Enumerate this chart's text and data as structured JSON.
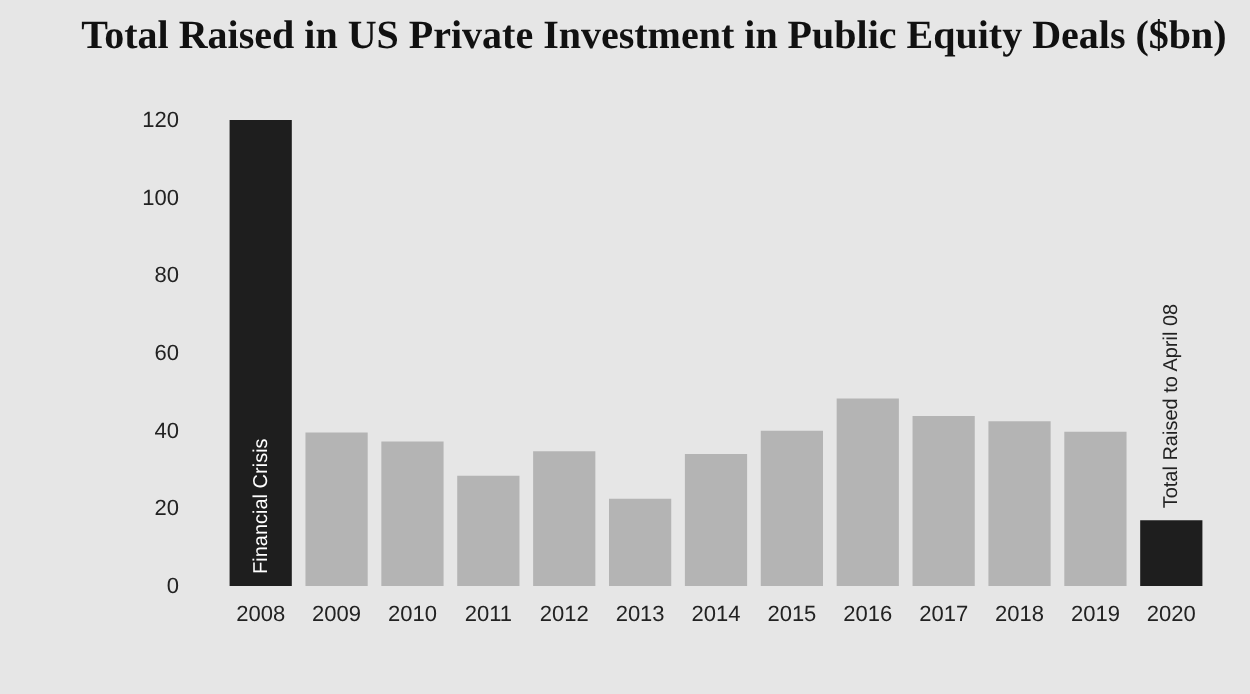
{
  "chart_data": {
    "type": "bar",
    "title": "Total Raised in US Private Investment in Public Equity Deals ($bn)",
    "categories": [
      "2008",
      "2009",
      "2010",
      "2011",
      "2012",
      "2013",
      "2014",
      "2015",
      "2016",
      "2017",
      "2018",
      "2019",
      "2020"
    ],
    "values": [
      120,
      39.5,
      37.2,
      28.4,
      34.7,
      22.5,
      34,
      40,
      48.3,
      43.8,
      42.4,
      39.7,
      16.9
    ],
    "colors": [
      "#1e1e1e",
      "#b4b4b4",
      "#b4b4b4",
      "#b4b4b4",
      "#b4b4b4",
      "#b4b4b4",
      "#b4b4b4",
      "#b4b4b4",
      "#b4b4b4",
      "#b4b4b4",
      "#b4b4b4",
      "#b4b4b4",
      "#1e1e1e"
    ],
    "ylim": [
      0,
      120
    ],
    "yticks": [
      0,
      20,
      40,
      60,
      80,
      100,
      120
    ],
    "grid": false,
    "annotations": [
      {
        "text": "Financial Crisis",
        "x": "2008",
        "y": 0
      },
      {
        "text": "Total Raised to April 08",
        "x": "2020",
        "y": 16.9
      }
    ]
  }
}
